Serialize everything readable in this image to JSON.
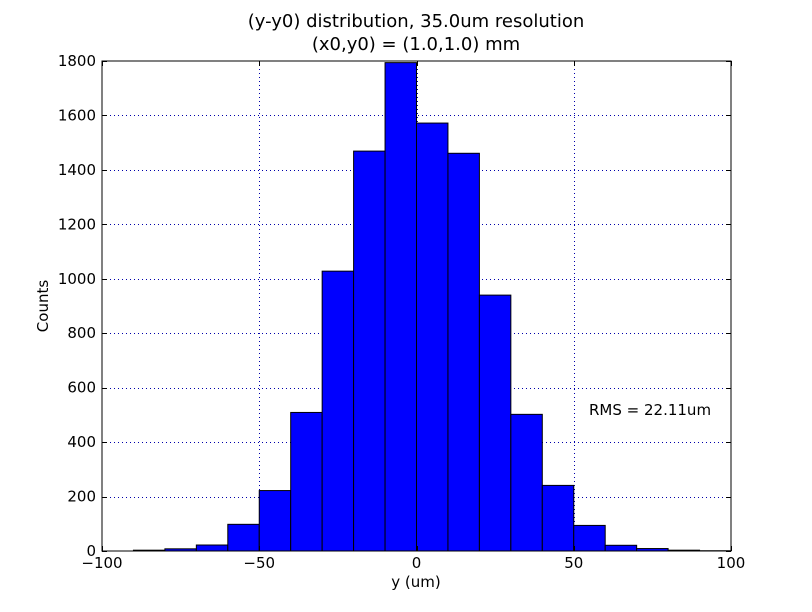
{
  "chart_data": {
    "type": "bar",
    "title_line1": "(y-y0) distribution, 35.0um resolution",
    "title_line2": "(x0,y0) = (1.0,1.0) mm",
    "xlabel": "y (um)",
    "ylabel": "Counts",
    "xlim": [
      -100,
      100
    ],
    "ylim": [
      0,
      1800
    ],
    "xticks": [
      -100,
      -50,
      0,
      50,
      100
    ],
    "xtick_labels": [
      "−100",
      "−50",
      "0",
      "50",
      "100"
    ],
    "yticks": [
      0,
      200,
      400,
      600,
      800,
      1000,
      1200,
      1400,
      1600,
      1800
    ],
    "ytick_labels": [
      "0",
      "200",
      "400",
      "600",
      "800",
      "1000",
      "1200",
      "1400",
      "1600",
      "1800"
    ],
    "grid": true,
    "bar_color": "#0000ff",
    "annotation": "RMS = 22.11um",
    "bins": [
      {
        "x0": -90,
        "x1": -80,
        "value": 3
      },
      {
        "x0": -80,
        "x1": -70,
        "value": 8
      },
      {
        "x0": -70,
        "x1": -60,
        "value": 22
      },
      {
        "x0": -60,
        "x1": -50,
        "value": 98
      },
      {
        "x0": -50,
        "x1": -40,
        "value": 222
      },
      {
        "x0": -40,
        "x1": -30,
        "value": 509
      },
      {
        "x0": -30,
        "x1": -20,
        "value": 1028
      },
      {
        "x0": -20,
        "x1": -10,
        "value": 1469
      },
      {
        "x0": -10,
        "x1": 0,
        "value": 1794
      },
      {
        "x0": 0,
        "x1": 10,
        "value": 1572
      },
      {
        "x0": 10,
        "x1": 20,
        "value": 1461
      },
      {
        "x0": 20,
        "x1": 30,
        "value": 940
      },
      {
        "x0": 30,
        "x1": 40,
        "value": 502
      },
      {
        "x0": 40,
        "x1": 50,
        "value": 241
      },
      {
        "x0": 50,
        "x1": 60,
        "value": 94
      },
      {
        "x0": 60,
        "x1": 70,
        "value": 21
      },
      {
        "x0": 70,
        "x1": 80,
        "value": 9
      },
      {
        "x0": 80,
        "x1": 90,
        "value": 3
      },
      {
        "x0": 90,
        "x1": 100,
        "value": 1
      }
    ]
  }
}
